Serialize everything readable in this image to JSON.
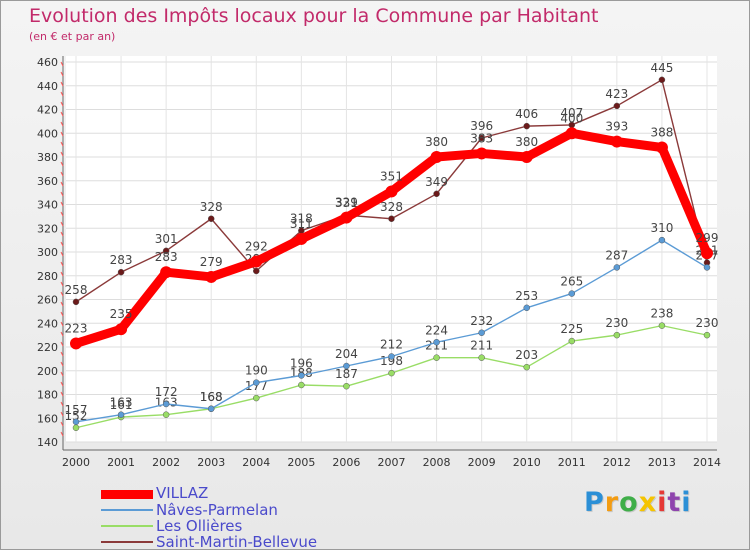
{
  "header": {
    "title": "Evolution des Impôts locaux pour la Commune par Habitant",
    "subtitle": "(en € et par an)"
  },
  "chart_data": {
    "type": "line",
    "title": "Evolution des Impôts locaux pour la Commune par Habitant",
    "subtitle": "(en € et par an)",
    "xlabel": "",
    "ylabel": "",
    "x": [
      "2000",
      "2001",
      "2002",
      "2003",
      "2004",
      "2005",
      "2006",
      "2007",
      "2008",
      "2009",
      "2010",
      "2011",
      "2012",
      "2013",
      "2014"
    ],
    "ylim": [
      140,
      460
    ],
    "yticks": [
      140,
      160,
      180,
      200,
      220,
      240,
      260,
      280,
      300,
      320,
      340,
      360,
      380,
      400,
      420,
      440,
      460
    ],
    "grid": true,
    "legend_position": "bottom-left",
    "series": [
      {
        "name": "Saint-Martin-Bellevue",
        "color": "#8b3a3a",
        "values": [
          258,
          283,
          301,
          328,
          284,
          318,
          331,
          328,
          349,
          396,
          406,
          407,
          423,
          445,
          291
        ]
      },
      {
        "name": "Les Ollières",
        "color": "#99dd66",
        "values": [
          152,
          161,
          163,
          168,
          177,
          188,
          187,
          198,
          211,
          211,
          203,
          225,
          230,
          238,
          230
        ]
      },
      {
        "name": "Nâves-Parmelan",
        "color": "#5b9bd5",
        "values": [
          157,
          163,
          172,
          168,
          190,
          196,
          204,
          212,
          224,
          232,
          253,
          265,
          287,
          310,
          287
        ]
      },
      {
        "name": "VILLAZ",
        "color": "#ff0000",
        "values": [
          223,
          235,
          283,
          279,
          292,
          311,
          329,
          351,
          380,
          383,
          380,
          400,
          393,
          388,
          299
        ]
      }
    ]
  },
  "legend": {
    "items": [
      {
        "label": "VILLAZ",
        "color": "#ff0000"
      },
      {
        "label": "Nâves-Parmelan",
        "color": "#5b9bd5"
      },
      {
        "label": "Les Ollières",
        "color": "#99dd66"
      },
      {
        "label": "Saint-Martin-Bellevue",
        "color": "#8b3a3a"
      }
    ]
  },
  "logo": {
    "letters": [
      "P",
      "r",
      "o",
      "x",
      "i",
      "t",
      "i"
    ],
    "colors": [
      "#2b8fd6",
      "#f39c12",
      "#3fae49",
      "#f5c400",
      "#e53935",
      "#8e44ad",
      "#2b8fd6"
    ]
  }
}
